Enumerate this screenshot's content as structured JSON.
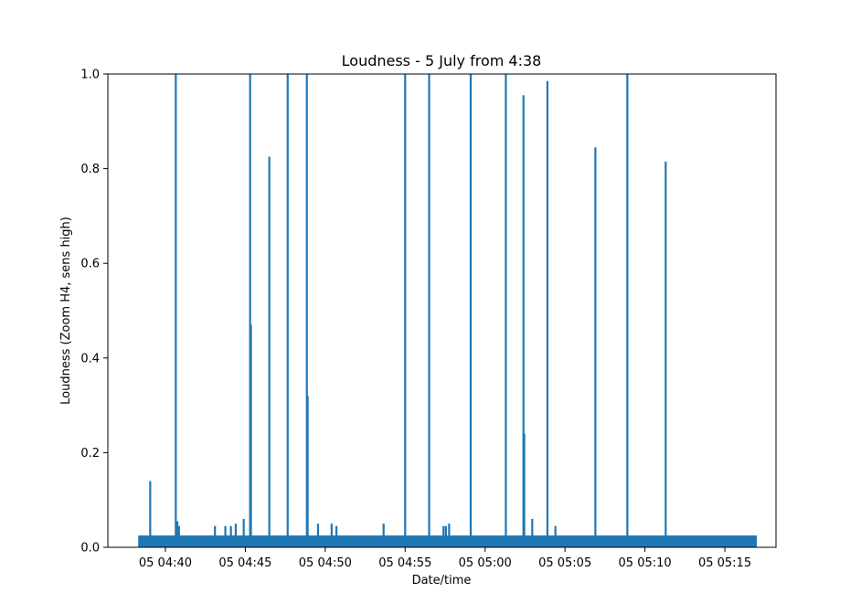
{
  "chart_data": {
    "type": "line",
    "title": "Loudness - 5 July from 4:38",
    "xlabel": "Date/time",
    "ylabel": "Loudness (Zoom H4, sens high)",
    "line_color": "#1f77b4",
    "x_unit": "minutes past 04:00 on 5 July",
    "xlim": [
      36.4,
      78.2
    ],
    "ylim": [
      0.0,
      1.0
    ],
    "grid": false,
    "legend": "none",
    "x_ticks": [
      {
        "value": 40,
        "label": "05 04:40"
      },
      {
        "value": 45,
        "label": "05 04:45"
      },
      {
        "value": 50,
        "label": "05 04:50"
      },
      {
        "value": 55,
        "label": "05 04:55"
      },
      {
        "value": 60,
        "label": "05 05:00"
      },
      {
        "value": 65,
        "label": "05 05:05"
      },
      {
        "value": 70,
        "label": "05 05:10"
      },
      {
        "value": 75,
        "label": "05 05:15"
      }
    ],
    "y_ticks": [
      {
        "value": 0.0,
        "label": "0.0"
      },
      {
        "value": 0.2,
        "label": "0.2"
      },
      {
        "value": 0.4,
        "label": "0.4"
      },
      {
        "value": 0.6,
        "label": "0.6"
      },
      {
        "value": 0.8,
        "label": "0.8"
      },
      {
        "value": 1.0,
        "label": "1.0"
      }
    ],
    "baseline": {
      "x_start": 38.3,
      "x_end": 77.0,
      "y_low": 0.0,
      "y_high": 0.025
    },
    "series": [
      {
        "points": [
          {
            "x": 39.05,
            "y": 0.14
          },
          {
            "x": 40.65,
            "y": 1.0
          },
          {
            "x": 40.75,
            "y": 0.055
          },
          {
            "x": 40.85,
            "y": 0.045
          },
          {
            "x": 43.1,
            "y": 0.045
          },
          {
            "x": 43.75,
            "y": 0.045
          },
          {
            "x": 44.1,
            "y": 0.045
          },
          {
            "x": 44.4,
            "y": 0.05
          },
          {
            "x": 44.9,
            "y": 0.06
          },
          {
            "x": 45.3,
            "y": 1.0
          },
          {
            "x": 45.35,
            "y": 0.47
          },
          {
            "x": 46.5,
            "y": 0.825
          },
          {
            "x": 47.65,
            "y": 1.0
          },
          {
            "x": 48.85,
            "y": 1.0
          },
          {
            "x": 48.9,
            "y": 0.32
          },
          {
            "x": 49.55,
            "y": 0.05
          },
          {
            "x": 50.4,
            "y": 0.05
          },
          {
            "x": 50.7,
            "y": 0.045
          },
          {
            "x": 53.65,
            "y": 0.05
          },
          {
            "x": 55.0,
            "y": 1.0
          },
          {
            "x": 56.5,
            "y": 1.0
          },
          {
            "x": 57.4,
            "y": 0.045
          },
          {
            "x": 57.55,
            "y": 0.045
          },
          {
            "x": 57.75,
            "y": 0.05
          },
          {
            "x": 59.1,
            "y": 1.0
          },
          {
            "x": 61.3,
            "y": 1.0
          },
          {
            "x": 62.4,
            "y": 0.955
          },
          {
            "x": 62.45,
            "y": 0.24
          },
          {
            "x": 62.95,
            "y": 0.06
          },
          {
            "x": 63.9,
            "y": 0.985
          },
          {
            "x": 64.4,
            "y": 0.045
          },
          {
            "x": 66.9,
            "y": 0.845
          },
          {
            "x": 68.9,
            "y": 1.0
          },
          {
            "x": 71.3,
            "y": 0.815
          }
        ]
      }
    ]
  }
}
